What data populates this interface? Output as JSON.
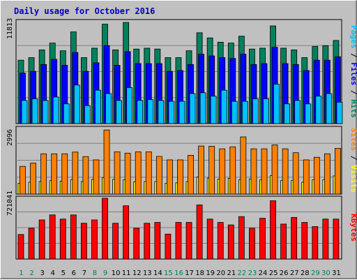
{
  "title": "Daily usage for October 2016",
  "colors": {
    "hits": "#00805c",
    "files": "#0000ff",
    "pages": "#00c0ff",
    "visits": "#ffff00",
    "sites": "#ff8000",
    "kbytes": "#ff0000",
    "weekday": "#000000",
    "weekend": "#00805c"
  },
  "chart_data": [
    {
      "type": "bar",
      "panel": "hits-files-pages",
      "ylabel": "11813",
      "ymax": 11813,
      "legend": [
        "Pages",
        "Files",
        "Hits"
      ],
      "categories": [
        "1",
        "2",
        "3",
        "4",
        "5",
        "6",
        "7",
        "8",
        "9",
        "10",
        "11",
        "12",
        "13",
        "14",
        "15",
        "16",
        "17",
        "18",
        "19",
        "20",
        "21",
        "22",
        "23",
        "24",
        "25",
        "26",
        "27",
        "28",
        "29",
        "30",
        "31"
      ],
      "series": [
        {
          "name": "Hits",
          "color": "#00805c",
          "values": [
            7400,
            7700,
            8600,
            9400,
            8500,
            10700,
            7700,
            8800,
            11600,
            8600,
            11800,
            8700,
            8800,
            8700,
            7700,
            7700,
            8500,
            10600,
            10000,
            9500,
            9400,
            10200,
            8700,
            8800,
            11400,
            8800,
            8600,
            7700,
            9000,
            9100,
            9700
          ]
        },
        {
          "name": "Files",
          "color": "#0000ff",
          "values": [
            5900,
            6100,
            6900,
            7500,
            6800,
            8300,
            6100,
            7100,
            9100,
            6800,
            8400,
            7000,
            7000,
            7000,
            6100,
            6200,
            6900,
            8100,
            7900,
            7700,
            7600,
            8100,
            6900,
            7000,
            8900,
            7000,
            6900,
            6200,
            7400,
            7400,
            7800
          ]
        },
        {
          "name": "Pages",
          "color": "#00c0ff",
          "values": [
            2700,
            2900,
            2700,
            3100,
            2300,
            4500,
            2100,
            3900,
            3500,
            2700,
            4200,
            2700,
            2800,
            2700,
            2600,
            2600,
            3500,
            3600,
            3200,
            3900,
            2600,
            2600,
            2900,
            2900,
            4600,
            2300,
            2700,
            2300,
            3200,
            3500,
            2500
          ]
        }
      ]
    },
    {
      "type": "bar",
      "panel": "visits-sites",
      "ylabel": "2996",
      "ymax": 2996,
      "legend": [
        "Sites",
        "Visits"
      ],
      "categories": [
        "1",
        "2",
        "3",
        "4",
        "5",
        "6",
        "7",
        "8",
        "9",
        "10",
        "11",
        "12",
        "13",
        "14",
        "15",
        "16",
        "17",
        "18",
        "19",
        "20",
        "21",
        "22",
        "23",
        "24",
        "25",
        "26",
        "27",
        "28",
        "29",
        "30",
        "31"
      ],
      "series": [
        {
          "name": "Visits",
          "color": "#ffff00",
          "values": [
            500,
            550,
            580,
            620,
            600,
            670,
            580,
            680,
            760,
            680,
            660,
            570,
            580,
            580,
            500,
            520,
            580,
            790,
            740,
            690,
            730,
            660,
            700,
            660,
            850,
            630,
            630,
            550,
            660,
            670,
            840
          ]
        },
        {
          "name": "Sites",
          "color": "#ff8000",
          "values": [
            1280,
            1430,
            1860,
            1860,
            1860,
            1940,
            1730,
            1580,
            2960,
            1950,
            1890,
            1950,
            1950,
            1740,
            1580,
            1580,
            1790,
            2220,
            2210,
            2090,
            2180,
            2640,
            2090,
            2090,
            2270,
            2090,
            1910,
            1580,
            1700,
            1860,
            2110
          ]
        }
      ]
    },
    {
      "type": "bar",
      "panel": "kbytes",
      "ylabel": "721041",
      "ymax": 721041,
      "legend": [
        "KBytes"
      ],
      "categories": [
        "1",
        "2",
        "3",
        "4",
        "5",
        "6",
        "7",
        "8",
        "9",
        "10",
        "11",
        "12",
        "13",
        "14",
        "15",
        "16",
        "17",
        "18",
        "19",
        "20",
        "21",
        "22",
        "23",
        "24",
        "25",
        "26",
        "27",
        "28",
        "29",
        "30",
        "31"
      ],
      "series": [
        {
          "name": "KBytes",
          "color": "#ff0000",
          "values": [
            295000,
            370000,
            470000,
            530000,
            480000,
            530000,
            430000,
            470000,
            730000,
            430000,
            640000,
            370000,
            430000,
            440000,
            300000,
            440000,
            440000,
            650000,
            480000,
            440000,
            410000,
            510000,
            370000,
            490000,
            700000,
            420000,
            500000,
            440000,
            390000,
            480000,
            480000
          ]
        }
      ]
    }
  ],
  "weekend_days": [
    "1",
    "2",
    "8",
    "9",
    "15",
    "16",
    "22",
    "23",
    "29",
    "30"
  ]
}
